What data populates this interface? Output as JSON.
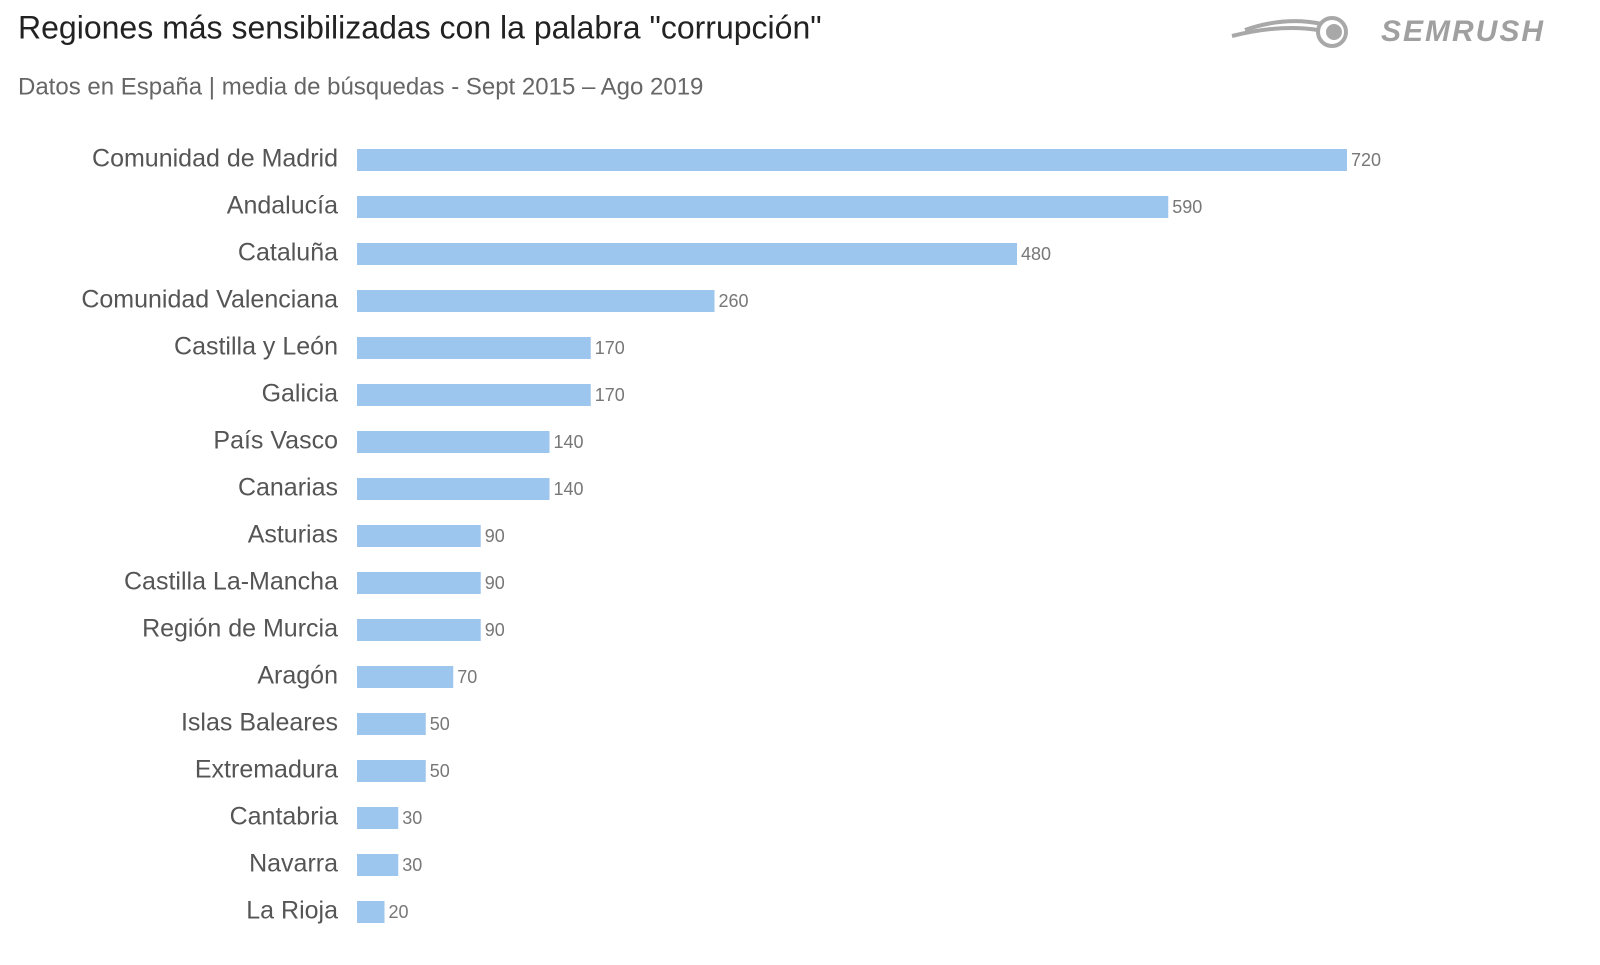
{
  "chart_data": {
    "type": "bar",
    "orientation": "horizontal",
    "title": "Regiones más sensibilizadas con la palabra \"corrupción\"",
    "subtitle": "Datos en España | media de búsquedas - Sept 2015 – Ago 2019",
    "logo": "SEMRUSH",
    "categories": [
      "Comunidad de Madrid",
      "Andalucía",
      "Cataluña",
      "Comunidad Valenciana",
      "Castilla y León",
      "Galicia",
      "País Vasco",
      "Canarias",
      "Asturias",
      "Castilla La-Mancha",
      "Región de Murcia",
      "Aragón",
      "Islas Baleares",
      "Extremadura",
      "Cantabria",
      "Navarra",
      "La Rioja"
    ],
    "values": [
      720,
      590,
      480,
      260,
      170,
      170,
      140,
      140,
      90,
      90,
      90,
      70,
      50,
      50,
      30,
      30,
      20
    ],
    "color": "#9dc6ee"
  }
}
